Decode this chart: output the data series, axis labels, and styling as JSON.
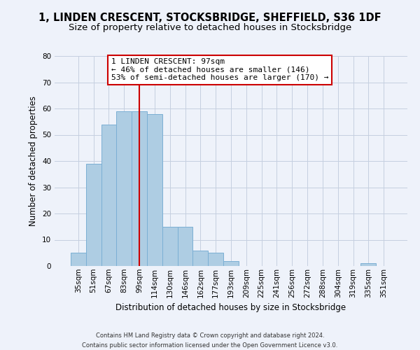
{
  "title": "1, LINDEN CRESCENT, STOCKSBRIDGE, SHEFFIELD, S36 1DF",
  "subtitle": "Size of property relative to detached houses in Stocksbridge",
  "xlabel": "Distribution of detached houses by size in Stocksbridge",
  "ylabel": "Number of detached properties",
  "bin_labels": [
    "35sqm",
    "51sqm",
    "67sqm",
    "83sqm",
    "99sqm",
    "114sqm",
    "130sqm",
    "146sqm",
    "162sqm",
    "177sqm",
    "193sqm",
    "209sqm",
    "225sqm",
    "241sqm",
    "256sqm",
    "272sqm",
    "288sqm",
    "304sqm",
    "319sqm",
    "335sqm",
    "351sqm"
  ],
  "bar_values": [
    5,
    39,
    54,
    59,
    59,
    58,
    15,
    15,
    6,
    5,
    2,
    0,
    0,
    0,
    0,
    0,
    0,
    0,
    0,
    1,
    0
  ],
  "bar_color": "#aecde3",
  "bar_edge_color": "#7bafd4",
  "property_line_color": "#cc0000",
  "property_line_x": 4,
  "ylim": [
    0,
    80
  ],
  "yticks": [
    0,
    10,
    20,
    30,
    40,
    50,
    60,
    70,
    80
  ],
  "annotation_title": "1 LINDEN CRESCENT: 97sqm",
  "annotation_line1": "← 46% of detached houses are smaller (146)",
  "annotation_line2": "53% of semi-detached houses are larger (170) →",
  "footer_line1": "Contains HM Land Registry data © Crown copyright and database right 2024.",
  "footer_line2": "Contains public sector information licensed under the Open Government Licence v3.0.",
  "background_color": "#eef2fa",
  "grid_color": "#c5cfe0",
  "title_fontsize": 10.5,
  "subtitle_fontsize": 9.5,
  "axis_label_fontsize": 8.5,
  "tick_fontsize": 7.5,
  "annotation_fontsize": 8,
  "footer_fontsize": 6
}
